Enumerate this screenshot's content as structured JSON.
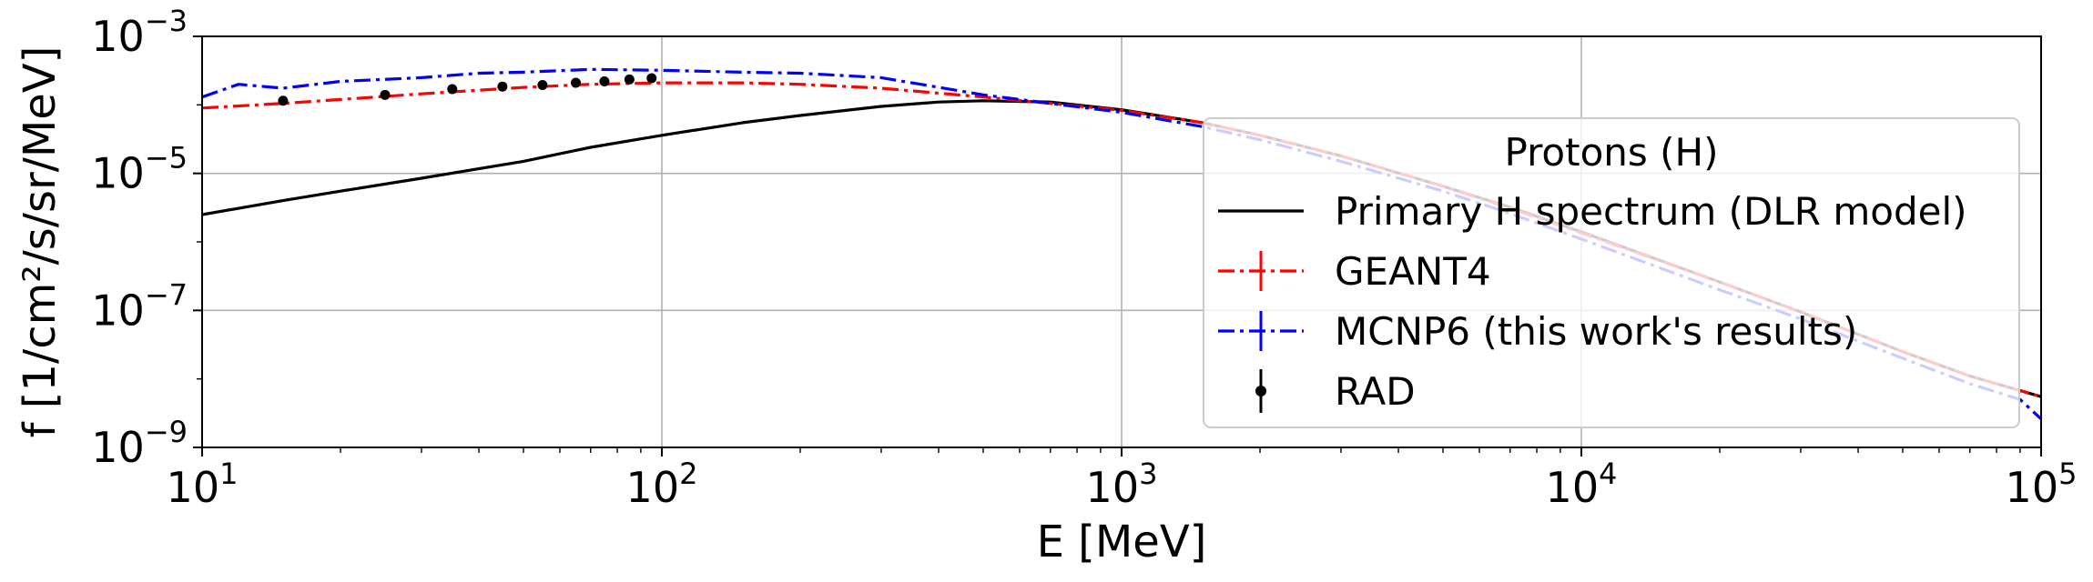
{
  "chart_data": {
    "type": "line",
    "xlabel": "E [MeV]",
    "ylabel": "f [1/cm²/s/sr/MeV]",
    "xscale": "log",
    "yscale": "log",
    "xlim": [
      10,
      100000
    ],
    "ylim": [
      1e-09,
      0.001
    ],
    "grid": true,
    "x_ticks": [
      {
        "value": 10,
        "base": "10",
        "exp": "1"
      },
      {
        "value": 100,
        "base": "10",
        "exp": "2"
      },
      {
        "value": 1000,
        "base": "10",
        "exp": "3"
      },
      {
        "value": 10000,
        "base": "10",
        "exp": "4"
      },
      {
        "value": 100000,
        "base": "10",
        "exp": "5"
      }
    ],
    "y_ticks": [
      {
        "value": 1e-09,
        "base": "10",
        "exp": "−9"
      },
      {
        "value": 1e-07,
        "base": "10",
        "exp": "−7"
      },
      {
        "value": 1e-05,
        "base": "10",
        "exp": "−5"
      },
      {
        "value": 0.001,
        "base": "10",
        "exp": "−3"
      }
    ],
    "legend": {
      "title": "Protons (H)",
      "placement": "center-right"
    },
    "series": [
      {
        "name": "Primary H spectrum (DLR model)",
        "color": "#000000",
        "style": "solid",
        "x": [
          10,
          15,
          20,
          30,
          50,
          70,
          100,
          150,
          200,
          300,
          400,
          500,
          700,
          1000,
          1500,
          2000,
          3000,
          5000,
          7000,
          10000,
          20000,
          30000,
          50000,
          70000,
          100000
        ],
        "y": [
          2.5e-06,
          4e-06,
          5.5e-06,
          8.5e-06,
          1.5e-05,
          2.4e-05,
          3.6e-05,
          5.5e-05,
          7e-05,
          9.5e-05,
          0.00011,
          0.000115,
          0.00011,
          8.5e-05,
          5.5e-05,
          3.6e-05,
          1.8e-05,
          6.5e-06,
          3.2e-06,
          1.4e-06,
          2.6e-07,
          9.5e-08,
          2.5e-08,
          1.1e-08,
          5.5e-09
        ]
      },
      {
        "name": "GEANT4",
        "color": "#ff0000",
        "style": "dashdot",
        "x": [
          10,
          15,
          20,
          30,
          50,
          70,
          100,
          150,
          200,
          300,
          500,
          700,
          1000,
          1500,
          2000,
          3000,
          5000,
          7000,
          10000,
          20000,
          30000,
          50000,
          70000,
          100000
        ],
        "y": [
          9e-05,
          0.000105,
          0.00012,
          0.000145,
          0.00018,
          0.0002,
          0.00021,
          0.00021,
          0.0002,
          0.000175,
          0.00013,
          0.000105,
          8.3e-05,
          5.5e-05,
          3.6e-05,
          1.8e-05,
          6.5e-06,
          3.1e-06,
          1.35e-06,
          2.6e-07,
          9.5e-08,
          2.5e-08,
          1.1e-08,
          5.5e-09
        ]
      },
      {
        "name": "MCNP6 (this work's results)",
        "color": "#0000ff",
        "style": "dashdot",
        "x": [
          10,
          12,
          15,
          20,
          30,
          40,
          50,
          70,
          100,
          150,
          200,
          300,
          500,
          700,
          1000,
          1500,
          2000,
          3000,
          5000,
          7000,
          10000,
          20000,
          30000,
          50000,
          70000,
          90000,
          100000
        ],
        "y": [
          0.00013,
          0.0002,
          0.000175,
          0.00022,
          0.00025,
          0.00029,
          0.0003,
          0.00033,
          0.00032,
          0.0003,
          0.00029,
          0.00025,
          0.00014,
          0.000105,
          7.8e-05,
          4.8e-05,
          3.1e-05,
          1.5e-05,
          5.5e-06,
          2.6e-06,
          1.1e-06,
          2e-07,
          7.5e-08,
          2e-08,
          8.5e-09,
          5e-09,
          2.6e-09
        ]
      },
      {
        "name": "RAD",
        "color": "#000000",
        "style": "markers",
        "x": [
          15,
          25,
          35,
          45,
          55,
          65,
          75,
          85,
          95
        ],
        "y": [
          0.000115,
          0.00014,
          0.00017,
          0.000185,
          0.000195,
          0.00021,
          0.00022,
          0.000235,
          0.000245
        ]
      }
    ]
  }
}
